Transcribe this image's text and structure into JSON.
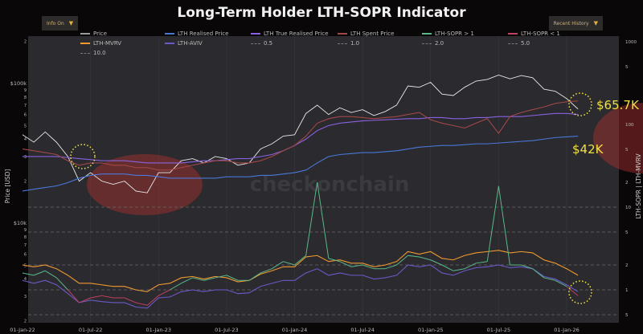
{
  "title": "Long-Term Holder LTH-SOPR Indicator",
  "controls": {
    "info": "Info On",
    "history": "Recent History"
  },
  "watermark": "checkonchain",
  "annotations": {
    "price_now": "$65.7K",
    "realised_now": "$42K"
  },
  "chart_data": {
    "type": "line",
    "title": "Long-Term Holder LTH-SOPR Indicator",
    "ylabel": "Price [USD]",
    "y2label": "LTH-SOPR | LTH-MVRV",
    "yscale": "log",
    "y2scale": "log",
    "ylim": [
      2000,
      200000
    ],
    "y2lim": [
      0.4,
      1000
    ],
    "grid": true,
    "legend": "top",
    "x_tick_labels": [
      "01-Jan-22",
      "01-Jul-22",
      "01-Jan-23",
      "01-Jul-23",
      "01-Jan-24",
      "01-Jul-24",
      "01-Jan-25",
      "01-Jul-25",
      "01-Jan-26"
    ],
    "y_tick_labels": [
      {
        "v": 200000,
        "t": "2"
      },
      {
        "v": 100000,
        "t": "$100k"
      },
      {
        "v": 90000,
        "t": "9"
      },
      {
        "v": 80000,
        "t": "8"
      },
      {
        "v": 70000,
        "t": "7"
      },
      {
        "v": 60000,
        "t": "6"
      },
      {
        "v": 50000,
        "t": "5"
      },
      {
        "v": 40000,
        "t": "4"
      },
      {
        "v": 30000,
        "t": "3"
      },
      {
        "v": 20000,
        "t": "2"
      },
      {
        "v": 10000,
        "t": "$10k"
      },
      {
        "v": 9000,
        "t": "9"
      },
      {
        "v": 8000,
        "t": "8"
      },
      {
        "v": 7000,
        "t": "7"
      },
      {
        "v": 6000,
        "t": "6"
      },
      {
        "v": 5000,
        "t": "5"
      },
      {
        "v": 4000,
        "t": "4"
      },
      {
        "v": 3000,
        "t": "3"
      },
      {
        "v": 2000,
        "t": "2"
      }
    ],
    "y2_tick_labels": [
      {
        "v": 1000,
        "t": "1000"
      },
      {
        "v": 500,
        "t": "5"
      },
      {
        "v": 100,
        "t": "100"
      },
      {
        "v": 50,
        "t": "5"
      },
      {
        "v": 20,
        "t": "2"
      },
      {
        "v": 10,
        "t": "10"
      },
      {
        "v": 5,
        "t": "5"
      },
      {
        "v": 2,
        "t": "2"
      },
      {
        "v": 1,
        "t": "1"
      },
      {
        "v": 0.5,
        "t": "5"
      }
    ],
    "x_start": "2022-01",
    "x_step": "month",
    "legend_entries": [
      {
        "name": "Price",
        "color": "#9a9a9a"
      },
      {
        "name": "LTH Realised Price",
        "color": "#4a78d8"
      },
      {
        "name": "LTH True Realised Price",
        "color": "#8a62e0"
      },
      {
        "name": "LTH Spent Price",
        "color": "#a04848"
      },
      {
        "name": "LTH-SOPR > 1",
        "color": "#5ab88a"
      },
      {
        "name": "LTH-SOPR < 1",
        "color": "#c04060"
      },
      {
        "name": "LTH-MVRV",
        "color": "#f09a30"
      },
      {
        "name": "LTH-AVIV",
        "color": "#6a5ac8"
      },
      {
        "name": "0.5",
        "dashed": true
      },
      {
        "name": "1.0",
        "dashed": true
      },
      {
        "name": "2.0",
        "dashed": true
      },
      {
        "name": "5.0",
        "dashed": true
      },
      {
        "name": "10.0",
        "dashed": true
      }
    ],
    "levels": [
      0.5,
      1.0,
      2.0,
      5.0,
      10.0
    ],
    "series": [
      {
        "name": "Price",
        "axis": "left",
        "color": "#e8e8e8",
        "values": [
          43000,
          38000,
          45000,
          38000,
          30000,
          20000,
          23000,
          20000,
          19000,
          20000,
          17000,
          16500,
          23000,
          23000,
          28000,
          29000,
          27000,
          30000,
          29000,
          26000,
          27000,
          34000,
          37000,
          42000,
          43000,
          61000,
          70000,
          60000,
          67000,
          62000,
          65000,
          59000,
          63000,
          70000,
          96000,
          94000,
          102000,
          84000,
          82000,
          94000,
          104000,
          107000,
          115000,
          108000,
          114000,
          110000,
          91000,
          88000,
          78000,
          65700
        ]
      },
      {
        "name": "LTH Realised Price",
        "axis": "left",
        "color": "#4a78d8",
        "values": [
          17000,
          17500,
          18000,
          18500,
          19500,
          21000,
          22000,
          22500,
          22500,
          22500,
          22000,
          22000,
          21500,
          21000,
          21000,
          21000,
          21000,
          21000,
          21500,
          21500,
          21500,
          22000,
          22000,
          22500,
          23000,
          24000,
          27000,
          30000,
          31000,
          31500,
          32000,
          32000,
          32500,
          33000,
          34000,
          35000,
          35500,
          36000,
          36000,
          36500,
          37000,
          37000,
          37500,
          38000,
          38500,
          39000,
          40000,
          41000,
          41500,
          42000
        ]
      },
      {
        "name": "LTH True Realised Price",
        "axis": "left",
        "color": "#8a62e0",
        "values": [
          30000,
          30000,
          30000,
          30000,
          29500,
          29000,
          28500,
          28000,
          28000,
          28000,
          27500,
          27000,
          27000,
          27000,
          27000,
          27500,
          28000,
          28000,
          28500,
          29000,
          29000,
          30000,
          31000,
          33000,
          36000,
          40000,
          46000,
          50000,
          52000,
          53000,
          54000,
          54500,
          55000,
          55500,
          56000,
          56000,
          57000,
          57000,
          56000,
          56000,
          57000,
          57000,
          58000,
          58000,
          58000,
          59000,
          60000,
          61000,
          61000,
          60000
        ]
      },
      {
        "name": "LTH Spent Price",
        "axis": "left",
        "color": "#a04848",
        "values": [
          34000,
          33000,
          32000,
          31000,
          28000,
          26000,
          27000,
          27000,
          26000,
          26000,
          25000,
          25000,
          24000,
          24000,
          25000,
          26000,
          27000,
          28000,
          28000,
          27000,
          27000,
          28000,
          30000,
          33000,
          36000,
          42000,
          52000,
          56000,
          58000,
          58000,
          57000,
          56000,
          57000,
          58000,
          60000,
          62000,
          55000,
          52000,
          50000,
          48000,
          52000,
          56000,
          44000,
          58000,
          62000,
          65000,
          68000,
          72000,
          74000,
          75000
        ]
      },
      {
        "name": "LTH-MVRV",
        "axis": "right",
        "color": "#f09a30",
        "values": [
          2.0,
          1.9,
          2.0,
          1.8,
          1.5,
          1.2,
          1.2,
          1.15,
          1.1,
          1.1,
          1.0,
          0.95,
          1.15,
          1.2,
          1.4,
          1.45,
          1.35,
          1.45,
          1.4,
          1.25,
          1.3,
          1.55,
          1.7,
          1.9,
          1.9,
          2.5,
          2.6,
          2.2,
          2.3,
          2.1,
          2.1,
          1.9,
          2.0,
          2.2,
          2.9,
          2.7,
          2.9,
          2.4,
          2.3,
          2.6,
          2.8,
          2.9,
          3.0,
          2.8,
          2.9,
          2.8,
          2.3,
          2.1,
          1.8,
          1.5
        ]
      },
      {
        "name": "LTH-AVIV",
        "axis": "right",
        "color": "#6a5ac8",
        "values": [
          1.3,
          1.2,
          1.3,
          1.15,
          0.9,
          0.7,
          0.75,
          0.72,
          0.7,
          0.7,
          0.62,
          0.6,
          0.8,
          0.82,
          0.95,
          1.0,
          0.95,
          1.0,
          1.0,
          0.9,
          0.92,
          1.1,
          1.2,
          1.3,
          1.3,
          1.6,
          1.8,
          1.5,
          1.6,
          1.5,
          1.5,
          1.35,
          1.4,
          1.5,
          2.0,
          1.9,
          2.0,
          1.6,
          1.5,
          1.7,
          1.85,
          1.9,
          2.0,
          1.85,
          1.9,
          1.8,
          1.45,
          1.35,
          1.15,
          0.95
        ]
      },
      {
        "name": "LTH-SOPR",
        "axis": "right",
        "color_above": "#5ab88a",
        "color_below": "#c04060",
        "values": [
          1.6,
          1.5,
          1.7,
          1.4,
          1.0,
          0.7,
          0.8,
          0.85,
          0.8,
          0.8,
          0.7,
          0.65,
          0.85,
          1.0,
          1.2,
          1.4,
          1.3,
          1.4,
          1.5,
          1.3,
          1.3,
          1.6,
          1.8,
          2.2,
          2.0,
          2.6,
          20,
          2.4,
          2.2,
          1.9,
          2.0,
          1.8,
          1.8,
          2.0,
          2.6,
          2.5,
          2.3,
          2.0,
          1.7,
          1.8,
          2.1,
          2.2,
          18,
          2.0,
          2.0,
          1.8,
          1.4,
          1.3,
          1.1,
          0.85
        ]
      }
    ]
  }
}
